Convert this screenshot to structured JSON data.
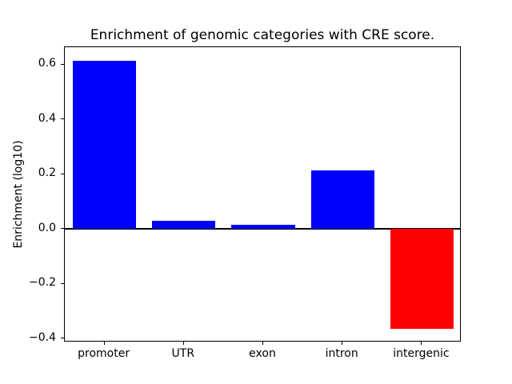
{
  "figure": {
    "background": "#ffffff"
  },
  "chart_data": {
    "type": "bar",
    "title": "Enrichment of genomic categories with CRE score.",
    "xlabel": "",
    "ylabel": "Enrichment (log10)",
    "categories": [
      "promoter",
      "UTR",
      "exon",
      "intron",
      "intergenic"
    ],
    "values": [
      0.615,
      0.03,
      0.015,
      0.215,
      -0.365
    ],
    "bar_colors": [
      "#0000ff",
      "#0000ff",
      "#0000ff",
      "#0000ff",
      "#ff0000"
    ],
    "positive_color": "#0000ff",
    "negative_color": "#ff0000",
    "bar_width_fraction": 0.8,
    "ylim": [
      -0.414,
      0.664
    ],
    "yticks": [
      -0.4,
      -0.2,
      0.0,
      0.2,
      0.4,
      0.6
    ],
    "ytick_labels": [
      "−0.4",
      "−0.2",
      "0.0",
      "0.2",
      "0.4",
      "0.6"
    ],
    "zero_line": true,
    "grid": false,
    "legend": "none"
  }
}
